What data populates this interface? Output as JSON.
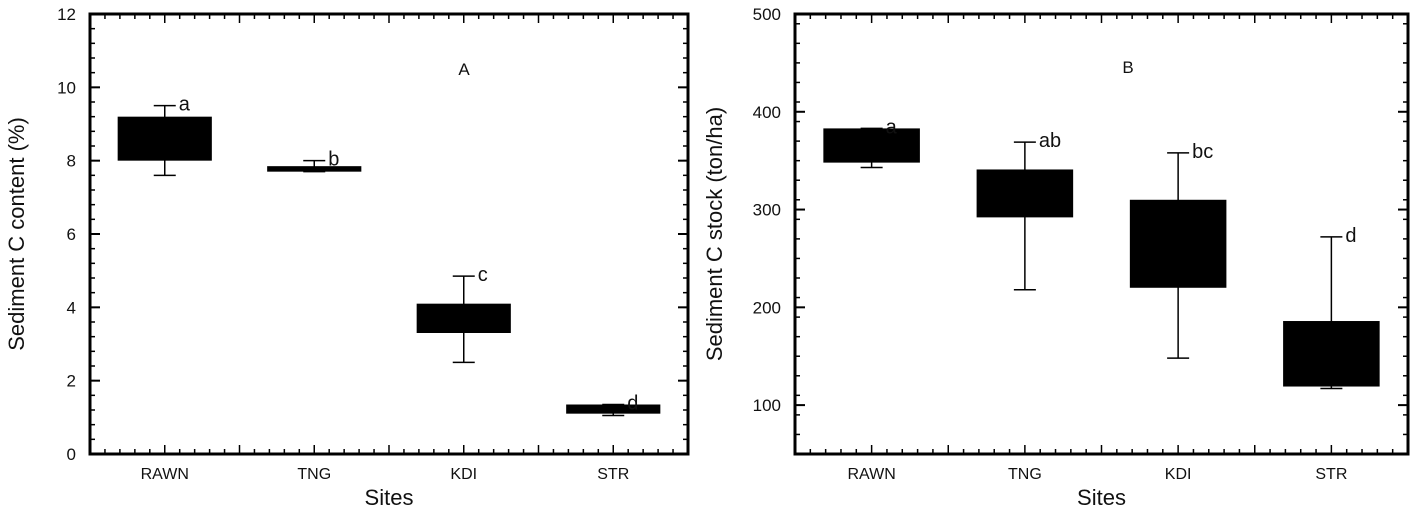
{
  "chart_data": [
    {
      "type": "box",
      "panel_label": "A",
      "xlabel": "Sites",
      "ylabel": "Sediment C content (%)",
      "ylim": [
        0,
        12
      ],
      "y_ticks": [
        "0",
        "2",
        "4",
        "6",
        "8",
        "10",
        "12"
      ],
      "categories": [
        "RAWN",
        "TNG",
        "KDI",
        "STR"
      ],
      "boxes": [
        {
          "site": "RAWN",
          "q1": 8.0,
          "q3": 9.2,
          "whisker_low": 7.6,
          "whisker_high": 9.5,
          "letter": "a"
        },
        {
          "site": "TNG",
          "q1": 7.7,
          "q3": 7.85,
          "whisker_low": 7.7,
          "whisker_high": 8.0,
          "letter": "b"
        },
        {
          "site": "KDI",
          "q1": 3.3,
          "q3": 4.1,
          "whisker_low": 2.5,
          "whisker_high": 4.85,
          "letter": "c"
        },
        {
          "site": "STR",
          "q1": 1.1,
          "q3": 1.35,
          "whisker_low": 1.05,
          "whisker_high": 1.35,
          "letter": "d"
        }
      ]
    },
    {
      "type": "box",
      "panel_label": "B",
      "xlabel": "Sites",
      "ylabel": "Sediment C stock (ton/ha)",
      "ylim": [
        50,
        500
      ],
      "y_ticks": [
        "100",
        "200",
        "300",
        "400",
        "500"
      ],
      "categories": [
        "RAWN",
        "TNG",
        "KDI",
        "STR"
      ],
      "boxes": [
        {
          "site": "RAWN",
          "q1": 348,
          "q3": 383,
          "whisker_low": 343,
          "whisker_high": 383,
          "letter": "a"
        },
        {
          "site": "TNG",
          "q1": 292,
          "q3": 341,
          "whisker_low": 218,
          "whisker_high": 369,
          "letter": "ab"
        },
        {
          "site": "KDI",
          "q1": 220,
          "q3": 310,
          "whisker_low": 148,
          "whisker_high": 358,
          "letter": "bc"
        },
        {
          "site": "STR",
          "q1": 119,
          "q3": 186,
          "whisker_low": 117,
          "whisker_high": 272,
          "letter": "d"
        }
      ]
    }
  ]
}
